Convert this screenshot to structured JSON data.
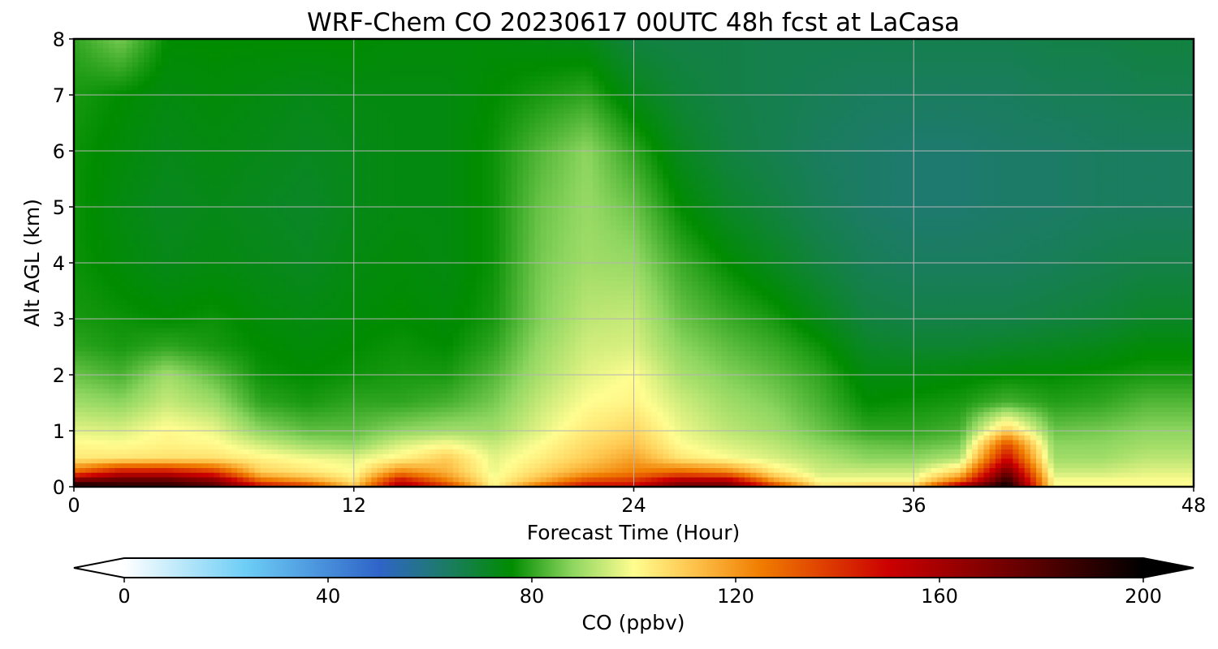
{
  "chart_data": {
    "type": "heatmap",
    "title": "WRF-Chem CO  20230617 00UTC 48h fcst at LaCasa",
    "xlabel": "Forecast Time (Hour)",
    "ylabel": "Alt AGL (km)",
    "xlim": [
      0,
      48
    ],
    "ylim": [
      0,
      8
    ],
    "x_ticks": [
      0,
      12,
      24,
      36,
      48
    ],
    "y_ticks": [
      0,
      1,
      2,
      3,
      4,
      5,
      6,
      7,
      8
    ],
    "grid": true,
    "colorbar": {
      "label": "CO  (ppbv)",
      "range": [
        0,
        200
      ],
      "ticks": [
        0,
        40,
        80,
        120,
        160,
        200
      ],
      "extend": "both",
      "stops": [
        {
          "v": 0,
          "c": "#ffffff"
        },
        {
          "v": 24,
          "c": "#6ccdf5"
        },
        {
          "v": 50,
          "c": "#2f64c8"
        },
        {
          "v": 62,
          "c": "#1e7a6e"
        },
        {
          "v": 76,
          "c": "#008c00"
        },
        {
          "v": 88,
          "c": "#8ed660"
        },
        {
          "v": 100,
          "c": "#fffd90"
        },
        {
          "v": 110,
          "c": "#ffcc55"
        },
        {
          "v": 125,
          "c": "#f07c00"
        },
        {
          "v": 150,
          "c": "#cc0000"
        },
        {
          "v": 175,
          "c": "#6a0000"
        },
        {
          "v": 200,
          "c": "#000000"
        }
      ]
    },
    "x_hours": [
      0,
      2,
      4,
      6,
      8,
      10,
      12,
      14,
      16,
      18,
      20,
      22,
      24,
      26,
      28,
      30,
      32,
      34,
      36,
      38,
      40,
      42,
      44,
      46,
      48
    ],
    "y_km": [
      0,
      0.1,
      0.25,
      0.5,
      0.75,
      1,
      1.5,
      2,
      2.5,
      3,
      4,
      5,
      6,
      7,
      8
    ],
    "values_ppbv": [
      [
        200,
        190,
        190,
        180,
        150,
        140,
        110,
        160,
        140,
        100,
        130,
        150,
        150,
        175,
        175,
        140,
        105,
        110,
        110,
        160,
        200,
        100,
        100,
        100,
        100
      ],
      [
        175,
        180,
        180,
        170,
        130,
        120,
        105,
        150,
        125,
        100,
        115,
        135,
        140,
        160,
        160,
        120,
        100,
        100,
        100,
        130,
        190,
        100,
        100,
        100,
        100
      ],
      [
        130,
        150,
        150,
        140,
        110,
        105,
        100,
        125,
        115,
        98,
        108,
        118,
        125,
        130,
        125,
        105,
        95,
        95,
        95,
        110,
        175,
        95,
        95,
        97,
        97
      ],
      [
        104,
        105,
        106,
        106,
        102,
        99,
        97,
        102,
        110,
        97,
        103,
        110,
        118,
        105,
        100,
        96,
        92,
        88,
        88,
        92,
        150,
        90,
        90,
        93,
        93
      ],
      [
        101,
        100,
        102,
        101,
        95,
        90,
        88,
        96,
        100,
        94,
        100,
        107,
        112,
        100,
        96,
        93,
        88,
        85,
        84,
        86,
        135,
        88,
        88,
        90,
        90
      ],
      [
        97,
        96,
        101,
        98,
        88,
        84,
        84,
        88,
        90,
        90,
        97,
        104,
        108,
        98,
        93,
        90,
        85,
        80,
        80,
        82,
        110,
        85,
        86,
        88,
        88
      ],
      [
        90,
        88,
        94,
        90,
        80,
        78,
        80,
        80,
        82,
        86,
        94,
        100,
        102,
        95,
        90,
        87,
        82,
        76,
        77,
        78,
        82,
        79,
        80,
        83,
        83
      ],
      [
        85,
        82,
        90,
        84,
        77,
        76,
        77,
        78,
        78,
        83,
        91,
        97,
        100,
        91,
        87,
        84,
        80,
        74,
        74,
        75,
        76,
        76,
        77,
        78,
        78
      ],
      [
        80,
        78,
        80,
        78,
        76,
        75,
        76,
        77,
        76,
        80,
        89,
        95,
        96,
        88,
        84,
        81,
        77,
        71,
        70,
        70,
        71,
        72,
        73,
        75,
        75
      ],
      [
        78,
        77,
        76,
        77,
        75,
        74,
        75,
        76,
        75,
        78,
        87,
        93,
        94,
        85,
        81,
        78,
        73,
        68,
        67,
        67,
        67,
        68,
        69,
        71,
        71
      ],
      [
        77,
        75,
        73,
        74,
        73,
        72,
        74,
        75,
        74,
        77,
        86,
        90,
        89,
        81,
        76,
        72,
        68,
        65,
        64,
        64,
        64,
        65,
        66,
        67,
        67
      ],
      [
        77,
        74,
        72,
        73,
        72,
        71,
        73,
        74,
        74,
        77,
        85,
        89,
        85,
        76,
        71,
        68,
        65,
        63,
        62,
        62,
        63,
        63,
        64,
        64,
        64
      ],
      [
        77,
        75,
        73,
        74,
        73,
        72,
        73,
        74,
        74,
        77,
        83,
        88,
        80,
        72,
        68,
        66,
        64,
        63,
        62,
        62,
        63,
        63,
        64,
        64,
        64
      ],
      [
        78,
        76,
        74,
        75,
        74,
        73,
        74,
        74,
        74,
        76,
        78,
        80,
        73,
        69,
        67,
        66,
        65,
        64,
        64,
        64,
        64,
        65,
        65,
        66,
        66
      ],
      [
        80,
        86,
        76,
        76,
        76,
        76,
        76,
        75,
        75,
        75,
        74,
        73,
        68,
        67,
        67,
        66,
        66,
        66,
        66,
        66,
        66,
        67,
        67,
        68,
        68
      ]
    ]
  }
}
